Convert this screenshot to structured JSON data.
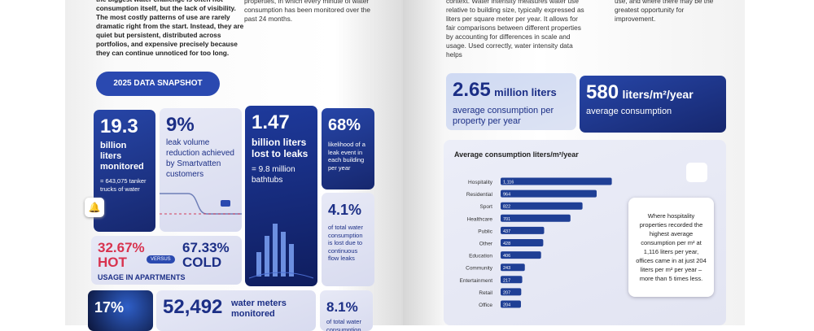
{
  "left_page": {
    "intro_text": "the biggest water challenge is often not consumption itself, but the lack of visibility. The most costly patterns of use are rarely dramatic right from the start. Instead, they are quiet but persistent, distributed across portfolios, and expensive precisely because they can continue unnoticed for too long.",
    "column_text": "properties, in which every minute of water consumption has been monitored over the past 24 months.",
    "badge": "2025 DATA SNAPSHOT",
    "monitored": {
      "number": "19.3",
      "label": "billion liters monitored",
      "note": "= 643,075 tanker trucks of water"
    },
    "reduction": {
      "number": "9%",
      "label": "leak volume reduction achieved by Smartvatten customers"
    },
    "leaks": {
      "number": "1.47",
      "label": "billion liters lost to leaks",
      "note": "= 9.8 million bathtubs"
    },
    "likelihood": {
      "number": "68%",
      "label": "likelihood of a leak event in each building per year"
    },
    "continuous": {
      "number": "4.1%",
      "label": "of total water consumption is lost due to continuous flow leaks"
    },
    "hot_cold": {
      "hot_number": "32.67%",
      "hot": "HOT",
      "versus": "VERSUS",
      "cold_number": "67.33%",
      "cold": "COLD",
      "caption": "USAGE IN APARTMENTS"
    },
    "share": {
      "number": "17%"
    },
    "meters": {
      "number": "52,492",
      "label": "water meters monitored"
    },
    "other": {
      "number": "8.1%",
      "label": "of total water consumption"
    }
  },
  "right_page": {
    "column_text": "context. Water intensity measures water use relative to building size, typically expressed as liters per square meter per year. It allows for fair comparisons between different properties by accounting for differences in scale and usage. Used correctly, water intensity data helps",
    "side_text": "use, and where there may be the greatest opportunity for improvement.",
    "per_property": {
      "number": "2.65",
      "unit": "million liters",
      "label": "average consumption per property per year"
    },
    "intensity": {
      "number": "580",
      "unit": "liters/m²/year",
      "label": "average consumption"
    },
    "callout": "Where hospitality properties recorded the highest average consumption per m² at 1,116 liters per year, offices came in at just 204 liters per m² per year – more than 5 times less."
  },
  "chart_data": {
    "type": "bar",
    "orientation": "horizontal",
    "title": "Average consumption liters/m²/year",
    "categories": [
      "Hospitality",
      "Residential",
      "Sport",
      "Healthcare",
      "Public",
      "Other",
      "Education",
      "Community",
      "Entertainment",
      "Retail",
      "Office"
    ],
    "values": [
      1116,
      964,
      822,
      701,
      437,
      428,
      406,
      243,
      217,
      207,
      204
    ],
    "value_labels": [
      "1,116",
      "964",
      "822",
      "701",
      "437",
      "428",
      "406",
      "243",
      "217",
      "207",
      "204"
    ],
    "color": "#1f3f95",
    "xlim": [
      0,
      1250
    ]
  }
}
